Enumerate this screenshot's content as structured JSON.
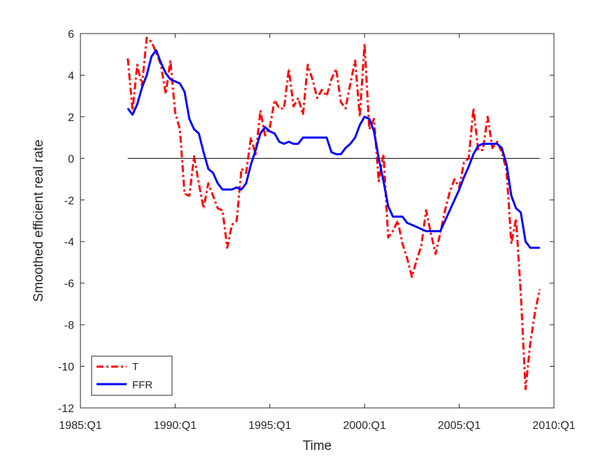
{
  "chart_data": {
    "type": "line",
    "title": "",
    "xlabel": "Time",
    "ylabel": "Smoothed efficient real rate",
    "xlim": [
      1985.0,
      2010.0
    ],
    "ylim": [
      -12,
      6
    ],
    "xticks": [
      {
        "value": 1985.0,
        "label": "1985:Q1"
      },
      {
        "value": 1990.0,
        "label": "1990:Q1"
      },
      {
        "value": 1995.0,
        "label": "1995:Q1"
      },
      {
        "value": 2000.0,
        "label": "2000:Q1"
      },
      {
        "value": 2005.0,
        "label": "2005:Q1"
      },
      {
        "value": 2010.0,
        "label": "2010:Q1"
      }
    ],
    "yticks": [
      6,
      4,
      2,
      0,
      -2,
      -4,
      -6,
      -8,
      -10,
      -12
    ],
    "grid": false,
    "legend_position": "bottom-left",
    "reference_line": {
      "y": 0,
      "x_range": [
        1987.5,
        2009.25
      ],
      "color": "#000000"
    },
    "series": [
      {
        "name": "T",
        "color": "#ff0000",
        "style": "dash-dot",
        "x": [
          1987.5,
          1987.75,
          1988.0,
          1988.25,
          1988.5,
          1988.75,
          1989.0,
          1989.25,
          1989.5,
          1989.75,
          1990.0,
          1990.25,
          1990.5,
          1990.75,
          1991.0,
          1991.25,
          1991.5,
          1991.75,
          1992.0,
          1992.25,
          1992.5,
          1992.75,
          1993.0,
          1993.25,
          1993.5,
          1993.75,
          1994.0,
          1994.25,
          1994.5,
          1994.75,
          1995.0,
          1995.25,
          1995.5,
          1995.75,
          1996.0,
          1996.25,
          1996.5,
          1996.75,
          1997.0,
          1997.25,
          1997.5,
          1997.75,
          1998.0,
          1998.25,
          1998.5,
          1998.75,
          1999.0,
          1999.25,
          1999.5,
          1999.75,
          2000.0,
          2000.25,
          2000.5,
          2000.75,
          2001.0,
          2001.25,
          2001.5,
          2001.75,
          2002.0,
          2002.25,
          2002.5,
          2002.75,
          2003.0,
          2003.25,
          2003.5,
          2003.75,
          2004.0,
          2004.25,
          2004.5,
          2004.75,
          2005.0,
          2005.25,
          2005.5,
          2005.75,
          2006.0,
          2006.25,
          2006.5,
          2006.75,
          2007.0,
          2007.25,
          2007.5,
          2007.75,
          2008.0,
          2008.25,
          2008.5,
          2008.75,
          2009.0,
          2009.25
        ],
        "values": [
          4.8,
          2.3,
          4.5,
          3.5,
          5.8,
          5.6,
          5.1,
          4.5,
          3.1,
          4.7,
          2.2,
          1.4,
          -1.7,
          -1.8,
          0.1,
          -1.2,
          -2.4,
          -1.2,
          -1.8,
          -2.4,
          -2.5,
          -4.3,
          -3.2,
          -3.0,
          -0.5,
          -0.7,
          1.0,
          0.2,
          2.3,
          1.1,
          1.5,
          2.8,
          2.4,
          2.4,
          4.3,
          2.5,
          2.9,
          2.1,
          4.5,
          3.8,
          2.9,
          3.3,
          3.0,
          3.8,
          4.3,
          2.7,
          2.4,
          3.6,
          4.7,
          2.0,
          5.5,
          1.4,
          1.9,
          -1.1,
          0.2,
          -3.8,
          -3.5,
          -3.0,
          -4.1,
          -4.8,
          -5.7,
          -4.9,
          -4.2,
          -2.5,
          -3.6,
          -4.6,
          -3.6,
          -2.5,
          -1.6,
          -1.0,
          -1.4,
          -0.2,
          0.0,
          2.4,
          0.4,
          0.4,
          2.0,
          0.5,
          0.8,
          0.3,
          -0.6,
          -4.1,
          -2.9,
          -6.5,
          -11.1,
          -8.9,
          -7.4,
          -6.3
        ]
      },
      {
        "name": "FFR",
        "color": "#0000ff",
        "style": "solid",
        "x": [
          1987.5,
          1987.75,
          1988.0,
          1988.25,
          1988.5,
          1988.75,
          1989.0,
          1989.25,
          1989.5,
          1989.75,
          1990.0,
          1990.25,
          1990.5,
          1990.75,
          1991.0,
          1991.25,
          1991.5,
          1991.75,
          1992.0,
          1992.25,
          1992.5,
          1992.75,
          1993.0,
          1993.25,
          1993.5,
          1993.75,
          1994.0,
          1994.25,
          1994.5,
          1994.75,
          1995.0,
          1995.25,
          1995.5,
          1995.75,
          1996.0,
          1996.25,
          1996.5,
          1996.75,
          1997.0,
          1997.25,
          1997.5,
          1997.75,
          1998.0,
          1998.25,
          1998.5,
          1998.75,
          1999.0,
          1999.25,
          1999.5,
          1999.75,
          2000.0,
          2000.25,
          2000.5,
          2000.75,
          2001.0,
          2001.25,
          2001.5,
          2001.75,
          2002.0,
          2002.25,
          2002.5,
          2002.75,
          2003.0,
          2003.25,
          2003.5,
          2003.75,
          2004.0,
          2004.25,
          2004.5,
          2004.75,
          2005.0,
          2005.25,
          2005.5,
          2005.75,
          2006.0,
          2006.25,
          2006.5,
          2006.75,
          2007.0,
          2007.25,
          2007.5,
          2007.75,
          2008.0,
          2008.25,
          2008.5,
          2008.75,
          2009.0,
          2009.25
        ],
        "values": [
          2.4,
          2.1,
          2.6,
          3.4,
          4.0,
          4.9,
          5.2,
          4.6,
          4.1,
          3.8,
          3.7,
          3.6,
          3.2,
          1.9,
          1.4,
          1.2,
          0.3,
          -0.5,
          -0.7,
          -1.2,
          -1.5,
          -1.5,
          -1.5,
          -1.4,
          -1.5,
          -1.2,
          -0.3,
          0.4,
          1.2,
          1.5,
          1.3,
          1.2,
          0.8,
          0.7,
          0.8,
          0.7,
          0.7,
          1.0,
          1.0,
          1.0,
          1.0,
          1.0,
          1.0,
          0.3,
          0.2,
          0.2,
          0.5,
          0.7,
          1.0,
          1.6,
          2.0,
          1.9,
          1.3,
          0.0,
          -1.1,
          -2.3,
          -2.8,
          -2.8,
          -2.8,
          -3.1,
          -3.2,
          -3.3,
          -3.4,
          -3.5,
          -3.5,
          -3.5,
          -3.5,
          -3.0,
          -2.5,
          -2.0,
          -1.5,
          -0.9,
          -0.4,
          0.2,
          0.6,
          0.7,
          0.7,
          0.7,
          0.7,
          0.5,
          -0.3,
          -1.8,
          -2.4,
          -2.6,
          -4.0,
          -4.3,
          -4.3,
          -4.3
        ]
      }
    ]
  }
}
